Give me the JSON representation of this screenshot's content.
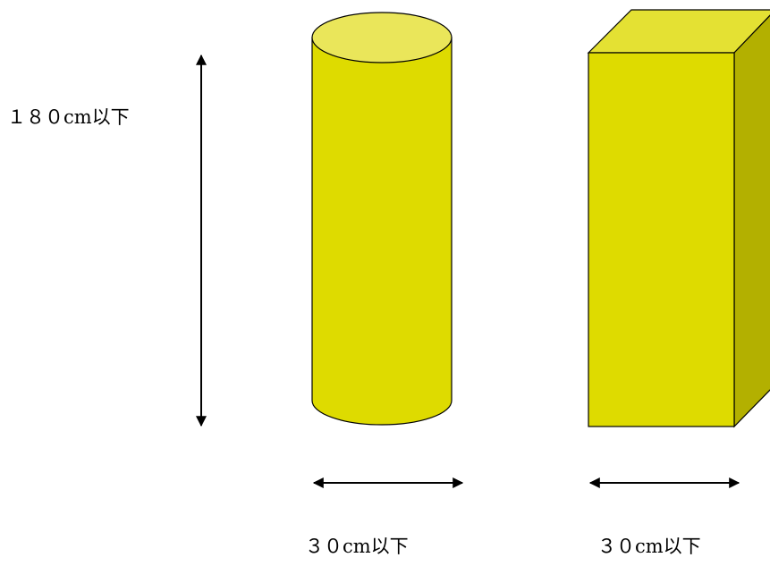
{
  "labels": {
    "height": "１８０cm以下",
    "cylinder_width": "３０cm以下",
    "box_width": "３０cm以下"
  },
  "colors": {
    "shape_fill": "#dedb00",
    "top_face": "#eae65a",
    "box_top_face": "#e4e133",
    "side_face": "#b3b000",
    "outline": "#000000"
  },
  "shapes": [
    "cylinder",
    "rectangular-prism"
  ]
}
